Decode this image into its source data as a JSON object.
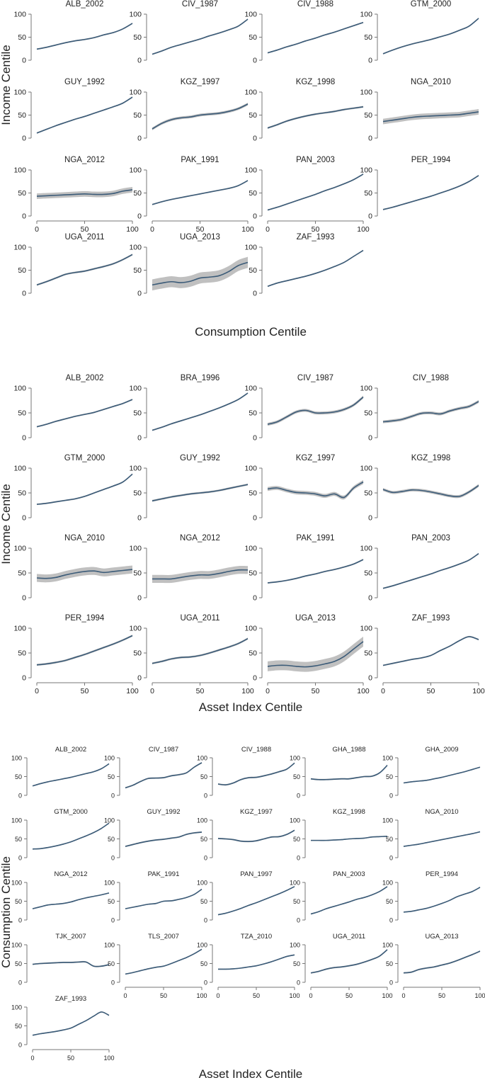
{
  "chart_data": [
    {
      "type": "line",
      "panel_layout": "grid-4-columns",
      "xlabel": "Consumption Centile",
      "ylabel": "Income Centile",
      "xlim": [
        0,
        100
      ],
      "ylim": [
        0,
        100
      ],
      "x_ticks": [
        "0",
        "50",
        "100"
      ],
      "y_ticks": [
        "0",
        "50",
        "100"
      ],
      "x": [
        0,
        10,
        20,
        30,
        40,
        50,
        60,
        70,
        80,
        90,
        100
      ],
      "series": [
        {
          "name": "ALB_2002",
          "values": [
            24,
            28,
            33,
            38,
            42,
            45,
            49,
            55,
            60,
            68,
            80
          ],
          "band": 1.5
        },
        {
          "name": "CIV_1987",
          "values": [
            13,
            20,
            28,
            34,
            40,
            46,
            53,
            59,
            66,
            74,
            89
          ],
          "band": 1.5
        },
        {
          "name": "CIV_1988",
          "values": [
            16,
            22,
            29,
            35,
            42,
            48,
            55,
            61,
            68,
            75,
            82
          ],
          "band": 1.5
        },
        {
          "name": "GTM_2000",
          "values": [
            14,
            22,
            29,
            35,
            40,
            45,
            51,
            57,
            65,
            74,
            91
          ],
          "band": 1.5
        },
        {
          "name": "GUY_1992",
          "values": [
            11,
            19,
            27,
            34,
            41,
            47,
            54,
            61,
            68,
            76,
            89
          ],
          "band": 1.5
        },
        {
          "name": "KGZ_1997",
          "values": [
            20,
            32,
            40,
            44,
            46,
            50,
            52,
            54,
            58,
            64,
            74
          ],
          "band": 3
        },
        {
          "name": "KGZ_1998",
          "values": [
            22,
            29,
            37,
            43,
            48,
            52,
            55,
            58,
            62,
            65,
            68
          ],
          "band": 2
        },
        {
          "name": "NGA_2010",
          "values": [
            36,
            39,
            42,
            45,
            47,
            48,
            49,
            50,
            51,
            54,
            57
          ],
          "band": 6
        },
        {
          "name": "NGA_2012",
          "values": [
            43,
            44,
            45,
            46,
            47,
            48,
            47,
            47,
            49,
            54,
            57
          ],
          "band": 6
        },
        {
          "name": "PAK_1991",
          "values": [
            25,
            31,
            36,
            40,
            44,
            48,
            52,
            56,
            60,
            66,
            77
          ],
          "band": 1.5
        },
        {
          "name": "PAN_2003",
          "values": [
            13,
            19,
            26,
            33,
            40,
            47,
            55,
            62,
            70,
            79,
            91
          ],
          "band": 1.5
        },
        {
          "name": "PER_1994",
          "values": [
            14,
            19,
            25,
            31,
            37,
            43,
            50,
            57,
            65,
            75,
            88
          ],
          "band": 1.5
        },
        {
          "name": "UGA_2011",
          "values": [
            18,
            25,
            33,
            41,
            45,
            48,
            53,
            58,
            64,
            73,
            84
          ],
          "band": 2
        },
        {
          "name": "UGA_2013",
          "values": [
            18,
            22,
            25,
            23,
            26,
            33,
            35,
            38,
            47,
            60,
            67
          ],
          "band": 12
        },
        {
          "name": "ZAF_1993",
          "values": [
            15,
            22,
            27,
            32,
            37,
            43,
            50,
            58,
            67,
            80,
            93
          ],
          "band": 1.5
        }
      ]
    },
    {
      "type": "line",
      "panel_layout": "grid-4-columns",
      "xlabel": "Asset Index Centile",
      "ylabel": "Income Centile",
      "xlim": [
        0,
        100
      ],
      "ylim": [
        0,
        100
      ],
      "x_ticks": [
        "0",
        "50",
        "100"
      ],
      "y_ticks": [
        "0",
        "50",
        "100"
      ],
      "x": [
        0,
        10,
        20,
        30,
        40,
        50,
        60,
        70,
        80,
        90,
        100
      ],
      "series": [
        {
          "name": "ALB_2002",
          "values": [
            22,
            27,
            33,
            38,
            43,
            47,
            51,
            57,
            63,
            69,
            77
          ],
          "band": 1.5
        },
        {
          "name": "BRA_1996",
          "values": [
            15,
            21,
            28,
            34,
            40,
            46,
            53,
            60,
            68,
            77,
            90
          ],
          "band": 1.5
        },
        {
          "name": "CIV_1987",
          "values": [
            27,
            32,
            42,
            52,
            55,
            50,
            50,
            52,
            57,
            66,
            82
          ],
          "band": 3
        },
        {
          "name": "CIV_1988",
          "values": [
            32,
            34,
            37,
            43,
            49,
            50,
            48,
            54,
            59,
            63,
            73
          ],
          "band": 3
        },
        {
          "name": "GTM_2000",
          "values": [
            27,
            29,
            32,
            35,
            38,
            43,
            50,
            57,
            64,
            72,
            88
          ],
          "band": 1.5
        },
        {
          "name": "GUY_1992",
          "values": [
            34,
            38,
            42,
            45,
            48,
            50,
            52,
            55,
            59,
            63,
            67
          ],
          "band": 2
        },
        {
          "name": "KGZ_1997",
          "values": [
            58,
            60,
            55,
            51,
            50,
            48,
            44,
            48,
            41,
            60,
            72
          ],
          "band": 4
        },
        {
          "name": "KGZ_1998",
          "values": [
            57,
            51,
            53,
            56,
            55,
            52,
            48,
            44,
            43,
            52,
            65
          ],
          "band": 3
        },
        {
          "name": "NGA_2010",
          "values": [
            40,
            39,
            41,
            46,
            50,
            53,
            54,
            51,
            53,
            55,
            57
          ],
          "band": 8
        },
        {
          "name": "NGA_2012",
          "values": [
            38,
            38,
            38,
            41,
            44,
            46,
            46,
            49,
            53,
            56,
            56
          ],
          "band": 8
        },
        {
          "name": "PAK_1991",
          "values": [
            30,
            32,
            35,
            39,
            44,
            48,
            53,
            57,
            62,
            68,
            77
          ],
          "band": 1.5
        },
        {
          "name": "PAN_2003",
          "values": [
            19,
            24,
            30,
            36,
            42,
            48,
            55,
            61,
            68,
            76,
            89
          ],
          "band": 1.5
        },
        {
          "name": "PER_1994",
          "values": [
            26,
            28,
            31,
            35,
            41,
            47,
            54,
            61,
            68,
            76,
            85
          ],
          "band": 2
        },
        {
          "name": "UGA_2011",
          "values": [
            29,
            33,
            38,
            41,
            42,
            45,
            50,
            56,
            62,
            69,
            79
          ],
          "band": 2
        },
        {
          "name": "UGA_2013",
          "values": [
            23,
            25,
            25,
            23,
            22,
            24,
            28,
            33,
            43,
            58,
            73
          ],
          "band": 10
        },
        {
          "name": "ZAF_1993",
          "values": [
            25,
            29,
            33,
            37,
            40,
            45,
            55,
            64,
            75,
            83,
            77
          ],
          "band": 1.5
        }
      ]
    },
    {
      "type": "line",
      "panel_layout": "grid-5-columns",
      "xlabel": "Asset Index Centile",
      "ylabel": "Consumption Centile",
      "xlim": [
        0,
        100
      ],
      "ylim": [
        0,
        100
      ],
      "x_ticks": [
        "0",
        "50",
        "100"
      ],
      "y_ticks": [
        "0",
        "50",
        "100"
      ],
      "x": [
        0,
        10,
        20,
        30,
        40,
        50,
        60,
        70,
        80,
        90,
        100
      ],
      "series": [
        {
          "name": "ALB_2002",
          "values": [
            25,
            31,
            36,
            40,
            44,
            48,
            53,
            58,
            63,
            71,
            84
          ],
          "band": 1.5
        },
        {
          "name": "CIV_1987",
          "values": [
            20,
            27,
            37,
            45,
            46,
            47,
            52,
            55,
            60,
            75,
            87
          ],
          "band": 2
        },
        {
          "name": "CIV_1988",
          "values": [
            30,
            28,
            33,
            42,
            47,
            48,
            52,
            57,
            63,
            70,
            86
          ],
          "band": 2
        },
        {
          "name": "GHA_1988",
          "values": [
            44,
            42,
            42,
            43,
            44,
            44,
            47,
            50,
            51,
            60,
            80
          ],
          "band": 2
        },
        {
          "name": "GHA_2009",
          "values": [
            33,
            36,
            38,
            40,
            44,
            48,
            53,
            58,
            63,
            69,
            75
          ],
          "band": 1.5
        },
        {
          "name": "GTM_2000",
          "values": [
            23,
            24,
            27,
            31,
            36,
            42,
            50,
            58,
            67,
            78,
            92
          ],
          "band": 1.5
        },
        {
          "name": "GUY_1992",
          "values": [
            30,
            35,
            40,
            44,
            47,
            49,
            52,
            55,
            62,
            66,
            68
          ],
          "band": 2
        },
        {
          "name": "KGZ_1997",
          "values": [
            51,
            50,
            48,
            44,
            43,
            45,
            50,
            55,
            56,
            62,
            73
          ],
          "band": 2
        },
        {
          "name": "KGZ_1998",
          "values": [
            46,
            46,
            46,
            47,
            48,
            50,
            51,
            52,
            55,
            56,
            57
          ],
          "band": 1.5
        },
        {
          "name": "NGA_2010",
          "values": [
            30,
            33,
            36,
            40,
            44,
            48,
            52,
            56,
            60,
            64,
            69
          ],
          "band": 1.5
        },
        {
          "name": "NGA_2012",
          "values": [
            30,
            35,
            40,
            42,
            44,
            48,
            54,
            59,
            63,
            67,
            72
          ],
          "band": 1.5
        },
        {
          "name": "PAK_1991",
          "values": [
            30,
            34,
            38,
            42,
            44,
            50,
            51,
            55,
            60,
            68,
            82
          ],
          "band": 1.5
        },
        {
          "name": "PAN_1997",
          "values": [
            14,
            18,
            24,
            31,
            39,
            46,
            54,
            62,
            70,
            79,
            89
          ],
          "band": 1.5
        },
        {
          "name": "PAN_2003",
          "values": [
            16,
            22,
            30,
            36,
            42,
            48,
            55,
            60,
            67,
            76,
            89
          ],
          "band": 1.5
        },
        {
          "name": "PER_1994",
          "values": [
            21,
            23,
            27,
            31,
            37,
            44,
            52,
            62,
            69,
            76,
            87
          ],
          "band": 1.5
        },
        {
          "name": "TJK_2007",
          "values": [
            48,
            50,
            51,
            52,
            53,
            53,
            54,
            54,
            43,
            43,
            47
          ],
          "band": 2
        },
        {
          "name": "TLS_2007",
          "values": [
            22,
            26,
            31,
            36,
            40,
            43,
            50,
            58,
            66,
            76,
            88
          ],
          "band": 1.5
        },
        {
          "name": "TZA_2010",
          "values": [
            35,
            35,
            36,
            38,
            41,
            44,
            49,
            55,
            62,
            69,
            73
          ],
          "band": 1.5
        },
        {
          "name": "UGA_2011",
          "values": [
            25,
            29,
            35,
            39,
            41,
            44,
            48,
            54,
            61,
            70,
            87
          ],
          "band": 2
        },
        {
          "name": "UGA_2013",
          "values": [
            25,
            27,
            34,
            38,
            41,
            46,
            51,
            58,
            66,
            74,
            83
          ],
          "band": 2
        },
        {
          "name": "ZAF_1993",
          "values": [
            25,
            29,
            32,
            35,
            39,
            44,
            54,
            64,
            76,
            87,
            78
          ],
          "band": 1.5
        }
      ]
    }
  ],
  "colors": {
    "line": "#3b5b78",
    "band": "#b5b5b5",
    "axis": "#777777",
    "grid_guide": "#d9d9d9"
  }
}
